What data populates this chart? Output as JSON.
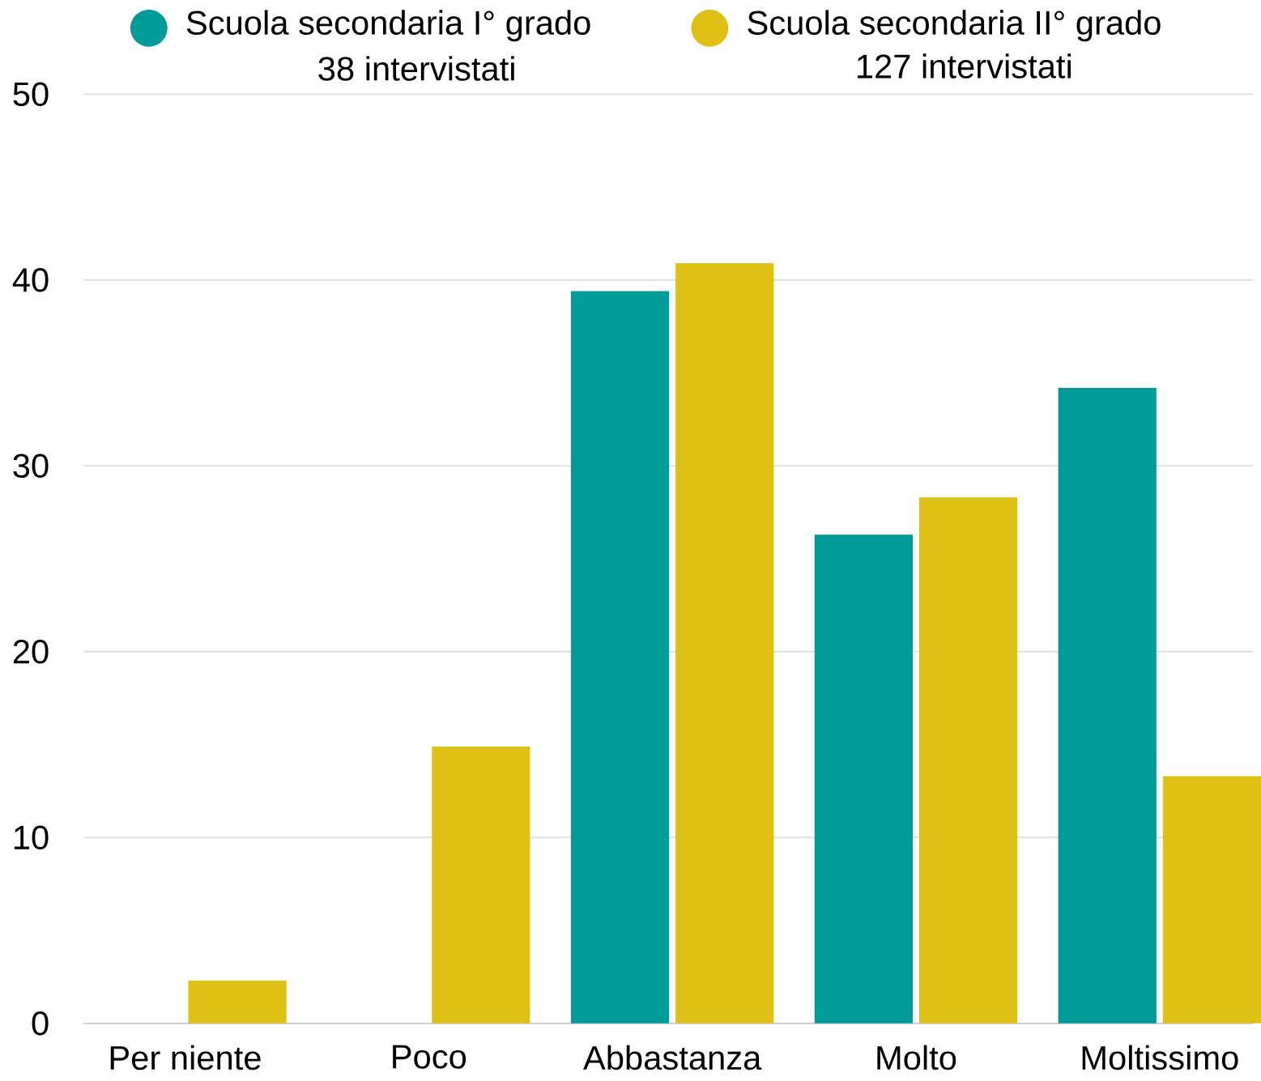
{
  "chart_data": {
    "type": "bar",
    "categories": [
      "Per niente",
      "Poco",
      "Abbastanza",
      "Molto",
      "Moltissimo"
    ],
    "series": [
      {
        "name": "Scuola secondaria I° grado",
        "color": "#009b96",
        "values": [
          0,
          0,
          39.4,
          26.3,
          34.2
        ]
      },
      {
        "name": "Scuola secondaria II° grado",
        "color": "#dfc116",
        "values": [
          2.3,
          14.9,
          40.9,
          28.3,
          13.3
        ]
      }
    ],
    "annotations": [
      "38 intervistati",
      "127 intervistati"
    ],
    "ylim": [
      0,
      50
    ],
    "yticks": [
      0,
      10,
      20,
      30,
      40,
      50
    ],
    "grid": "y",
    "legend": "top"
  }
}
